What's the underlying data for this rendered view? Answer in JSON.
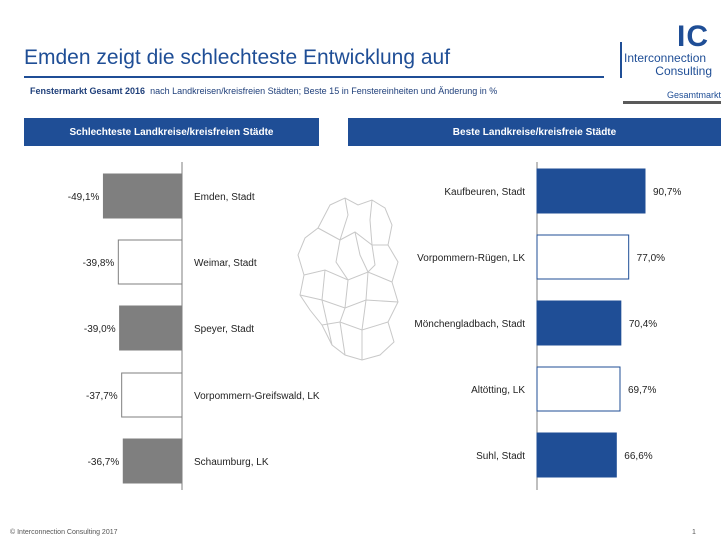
{
  "header": {
    "title": "Emden zeigt die schlechteste Entwicklung auf",
    "subtitle_bold": "Fenstermarkt Gesamt 2016",
    "subtitle_rest": "nach Landkreisen/kreisfreien Städten; Beste 15 in Fenstereinheiten und Änderung in %",
    "badge": "Gesamtmarkt"
  },
  "logo": {
    "mark": "IC",
    "line1": "Interconnection",
    "line2": "Consulting"
  },
  "footer": {
    "copyright": "© Interconnection Consulting 2017",
    "page": "1"
  },
  "colors": {
    "brand_blue": "#1f4e96",
    "bar_gray": "#7f7f7f",
    "bar_white": "#ffffff",
    "bar_blue": "#1f4e96"
  },
  "map_icon": "germany-map-icon",
  "chart_data": [
    {
      "type": "bar",
      "orientation": "horizontal",
      "title": "Schlechteste Landkreise/kreisfreien Städte",
      "categories": [
        "Emden, Stadt",
        "Weimar, Stadt",
        "Speyer, Stadt",
        "Vorpommern-Greifswald, LK",
        "Schaumburg, LK"
      ],
      "values": [
        -49.1,
        -39.8,
        -39.0,
        -37.7,
        -36.7
      ],
      "labels": [
        "-49,1%",
        "-39,8%",
        "-39,0%",
        "-37,7%",
        "-36,7%"
      ],
      "fills": [
        "gray",
        "white",
        "gray",
        "white",
        "gray"
      ],
      "unit": "%",
      "xlim": [
        -50,
        0
      ]
    },
    {
      "type": "bar",
      "orientation": "horizontal",
      "title": "Beste Landkreise/kreisfreie Städte",
      "categories": [
        "Kaufbeuren, Stadt",
        "Vorpommern-Rügen, LK",
        "Mönchengladbach, Stadt",
        "Altötting, LK",
        "Suhl, Stadt"
      ],
      "values": [
        90.7,
        77.0,
        70.4,
        69.7,
        66.6
      ],
      "labels": [
        "90,7%",
        "77,0%",
        "70,4%",
        "69,7%",
        "66,6%"
      ],
      "fills": [
        "blue",
        "white",
        "blue",
        "white",
        "blue"
      ],
      "unit": "%",
      "xlim": [
        0,
        100
      ]
    }
  ]
}
